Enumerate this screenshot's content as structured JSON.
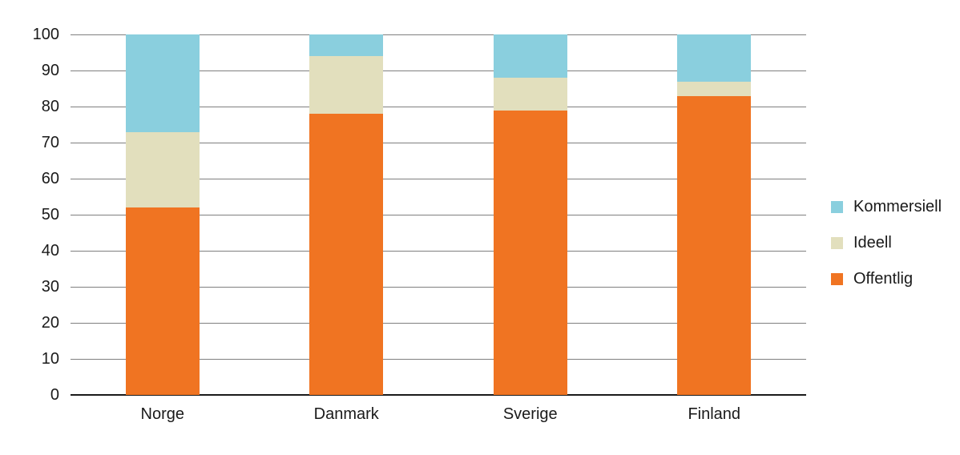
{
  "chart_data": {
    "type": "bar",
    "stacked": true,
    "title": "",
    "categories": [
      "Norge",
      "Danmark",
      "Sverige",
      "Finland"
    ],
    "series": [
      {
        "name": "Offentlig",
        "color": "#F07422",
        "values": [
          52,
          78,
          79,
          83
        ]
      },
      {
        "name": "Ideell",
        "color": "#E2DFBD",
        "values": [
          21,
          16,
          9,
          4
        ]
      },
      {
        "name": "Kommersiell",
        "color": "#8ACFDE",
        "values": [
          27,
          6,
          12,
          13
        ]
      }
    ],
    "stack_totals": [
      100,
      100,
      100,
      100
    ],
    "ylim": [
      0,
      100
    ],
    "yticks": [
      0,
      10,
      20,
      30,
      40,
      50,
      60,
      70,
      80,
      90,
      100
    ],
    "xlabel": "",
    "ylabel": "",
    "grid": true,
    "legend_position": "right",
    "legend_order": [
      "Kommersiell",
      "Ideell",
      "Offentlig"
    ]
  },
  "style": {
    "background": "#FFFFFF",
    "gridline_color": "#7F7F7F",
    "axis_color": "#1A1A1A",
    "text_color": "#1A1A1A"
  }
}
